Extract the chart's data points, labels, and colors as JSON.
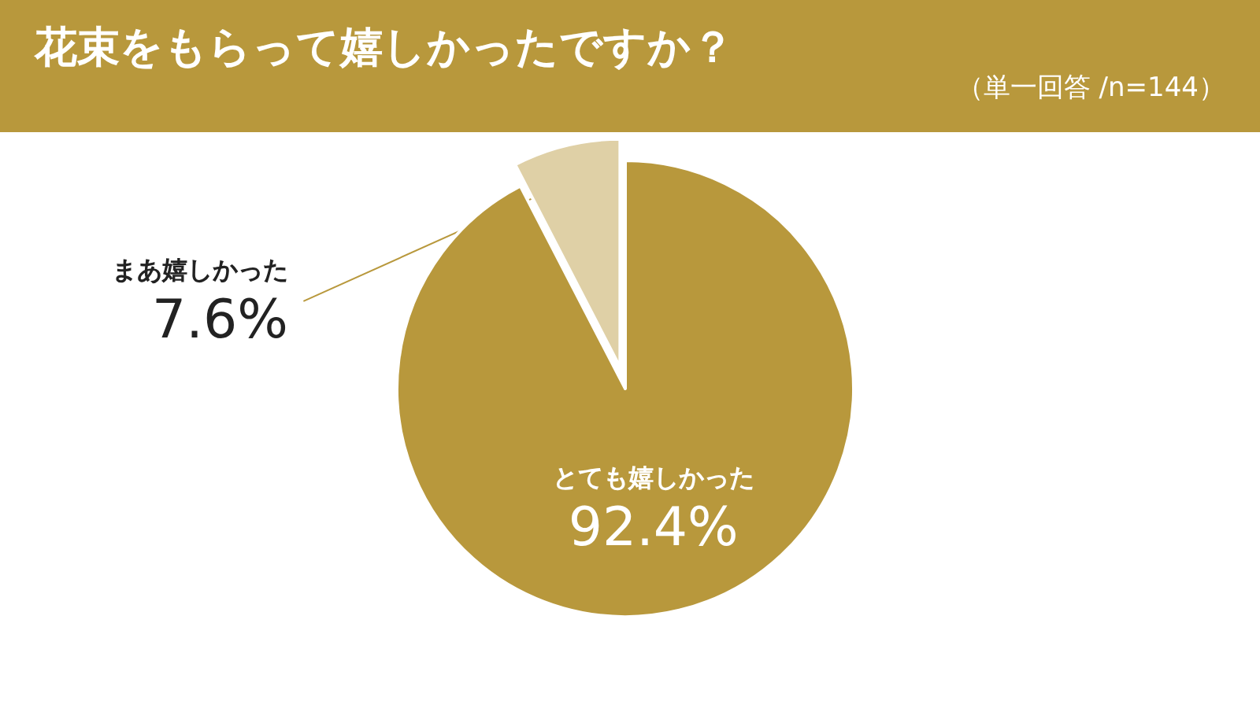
{
  "chart_data": {
    "type": "pie",
    "title": "花束をもらって嬉しかったですか？",
    "subtitle": "（単一回答 /n=144）",
    "categories": [
      "とても嬉しかった",
      "まあ嬉しかった"
    ],
    "values": [
      92.4,
      7.6
    ],
    "colors": [
      "#b8983c",
      "#dfd0a6"
    ],
    "value_labels": [
      "92.4%",
      "7.6%"
    ]
  }
}
